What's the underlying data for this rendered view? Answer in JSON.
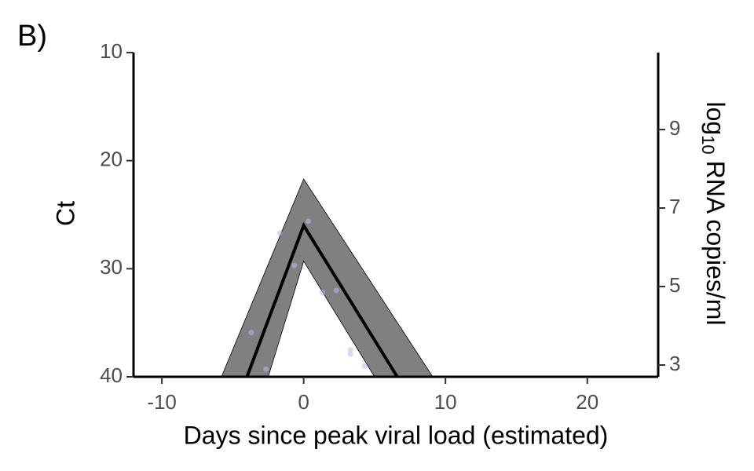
{
  "panel_label": "B)",
  "chart_data": {
    "type": "line",
    "xlabel": "Days since peak viral load (estimated)",
    "ylabel": "Ct",
    "y2label": {
      "base": "log",
      "sub": "10",
      "rest": "RNA copies/ml"
    },
    "xlim": [
      -12,
      25
    ],
    "xticks": [
      -10,
      0,
      10,
      20
    ],
    "ylim": [
      40,
      10
    ],
    "yticks": [
      10,
      20,
      30,
      40
    ],
    "y2lim": [
      2.7,
      10.96
    ],
    "y2ticks": [
      3,
      5,
      7,
      9
    ],
    "band": {
      "color": "#808080",
      "x": [
        -5.8,
        0,
        9.1,
        5,
        0,
        -2.5
      ],
      "values": [
        40,
        21.7,
        40,
        40,
        29.3,
        40
      ]
    },
    "line": {
      "color": "#000000",
      "x": [
        -4,
        0,
        6.6
      ],
      "values": [
        40,
        26,
        40
      ]
    },
    "points": {
      "color": "#b8b8f0",
      "x": [
        -1.7,
        -0.66,
        0.33,
        1.33,
        2.3,
        3.3,
        3.3,
        4.3,
        -3.7,
        -2.65
      ],
      "values": [
        26.7,
        29.7,
        25.6,
        32.2,
        32.0,
        37.5,
        37.9,
        39.0,
        35.9,
        39.3
      ]
    }
  }
}
